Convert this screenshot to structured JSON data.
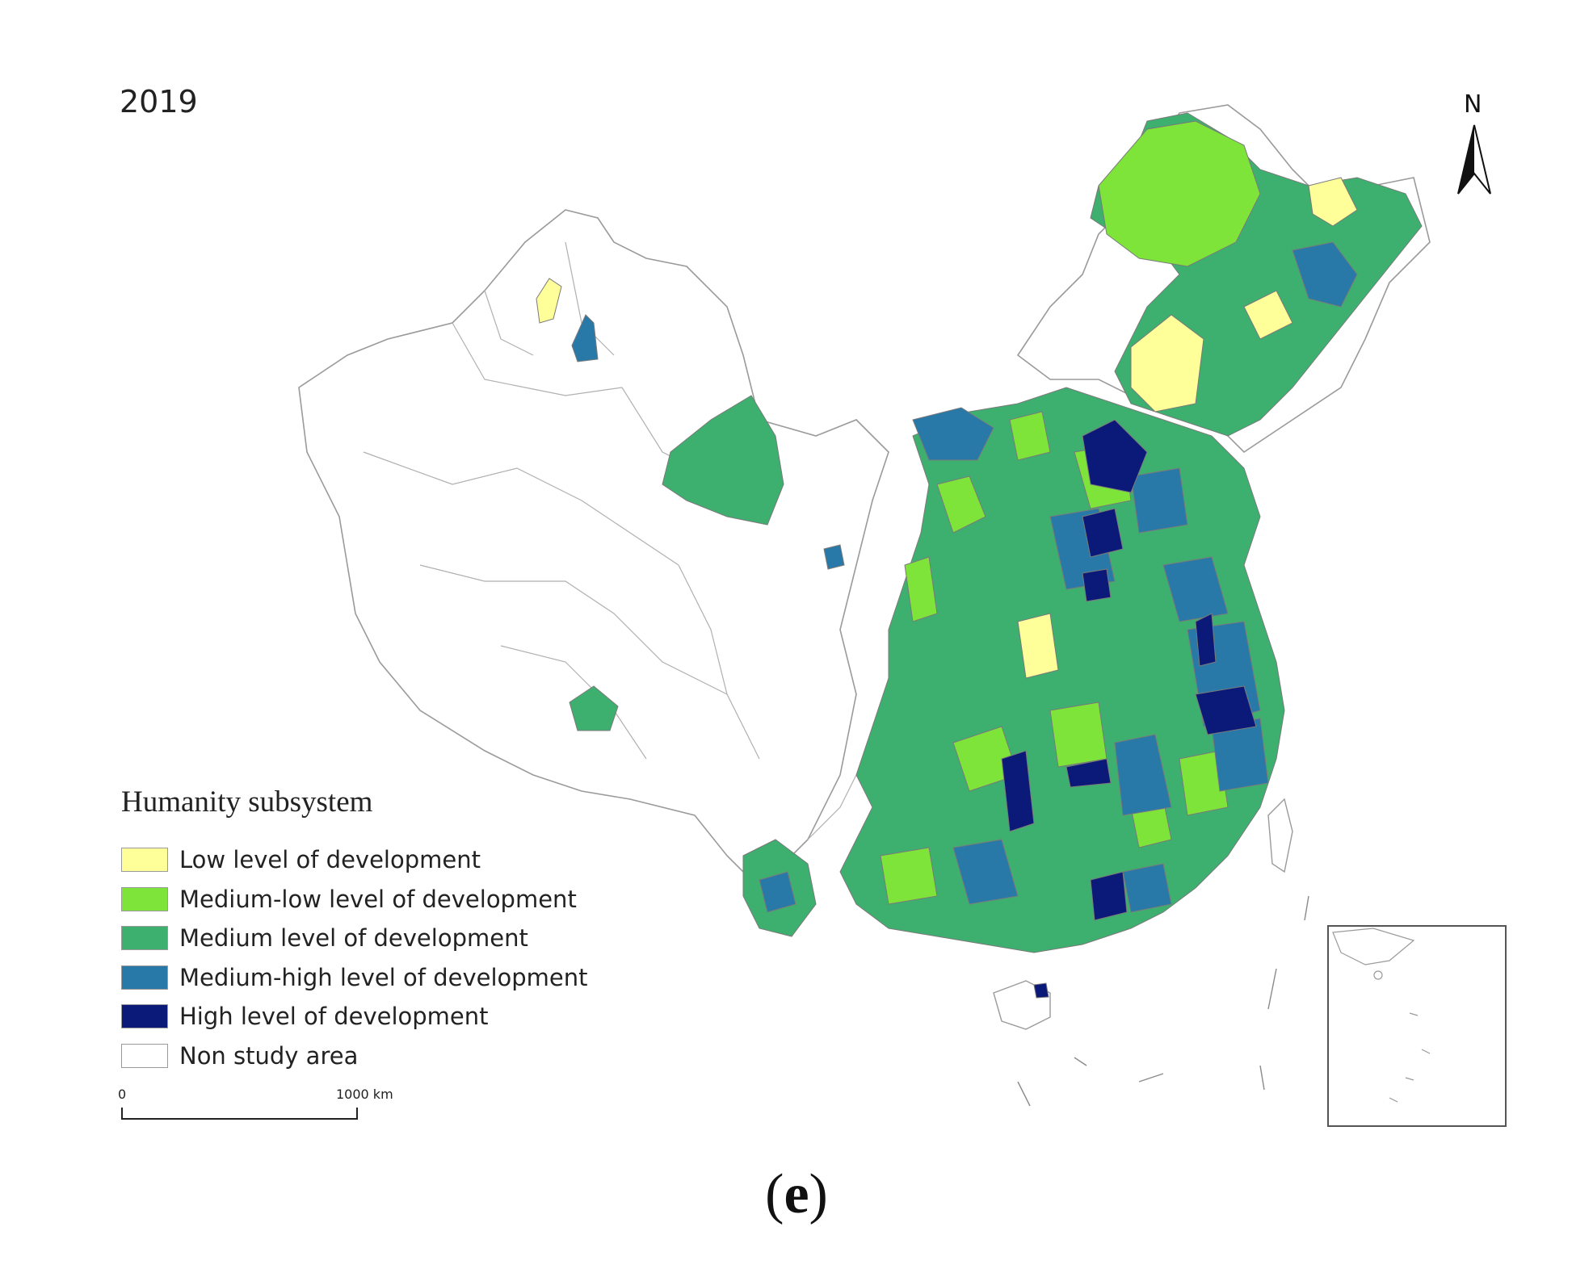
{
  "year": "2019",
  "north_label": "N",
  "legend": {
    "title": "Humanity subsystem",
    "items": [
      {
        "label": "Low level of development",
        "color": "#ffff99"
      },
      {
        "label": "Medium-low level of development",
        "color": "#7fe43a"
      },
      {
        "label": "Medium level of development",
        "color": "#3daf6e"
      },
      {
        "label": "Medium-high level of development",
        "color": "#2879a8"
      },
      {
        "label": "High level of development",
        "color": "#0b1a78"
      },
      {
        "label": "Non study area",
        "color": "#ffffff"
      }
    ]
  },
  "scale_bar": {
    "start": "0",
    "end": "1000 km"
  },
  "caption": {
    "open": "(",
    "letter": "e",
    "close": ")"
  }
}
